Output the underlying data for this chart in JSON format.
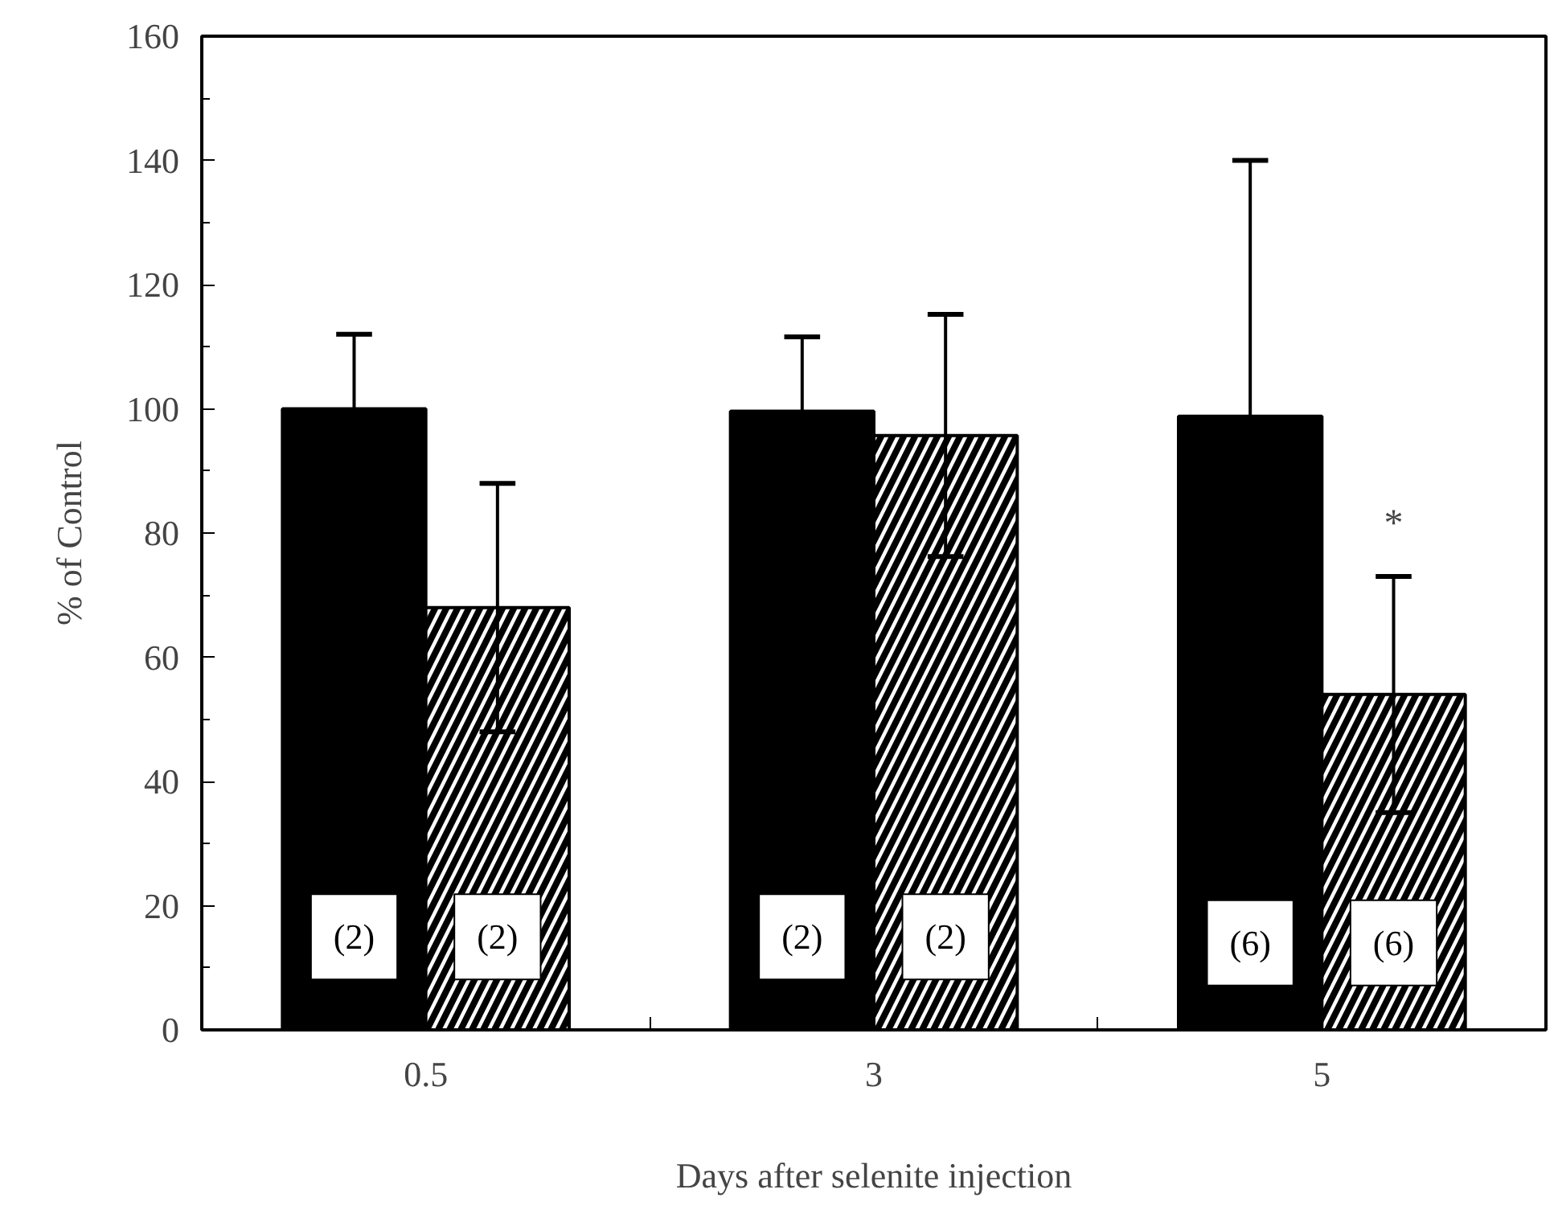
{
  "chart_data": {
    "type": "bar",
    "xlabel": "Days after selenite injection",
    "ylabel": "% of Control",
    "categories": [
      "0.5",
      "3",
      "5"
    ],
    "series": [
      {
        "color": "#000000",
        "values": [
          100,
          99.6,
          98.8
        ],
        "errors": [
          [
            100,
            112
          ],
          [
            99.6,
            111.6
          ],
          [
            98.8,
            140
          ]
        ]
      },
      {
        "color": "#000000",
        "values": [
          68,
          95.7,
          54
        ],
        "errors": [
          20,
          19.5,
          19
        ]
      }
    ],
    "ylim": [
      0,
      160
    ],
    "yticks": [
      0,
      20,
      40,
      60,
      80,
      100,
      120,
      140,
      160
    ],
    "annotations": [
      {
        "text": "(2)",
        "x": "0.5",
        "y": 15
      },
      {
        "text": "(2)",
        "x": "0.5",
        "y": 15
      },
      {
        "text": "(2)",
        "x": "3",
        "y": 15
      },
      {
        "text": "(2)",
        "x": "3",
        "y": 15
      },
      {
        "text": "(6)",
        "x": "5",
        "y": 14
      },
      {
        "text": "(6)",
        "x": "5",
        "y": 14
      },
      {
        "text": "*",
        "x": "5",
        "y": 78
      }
    ],
    "grid": false
  }
}
